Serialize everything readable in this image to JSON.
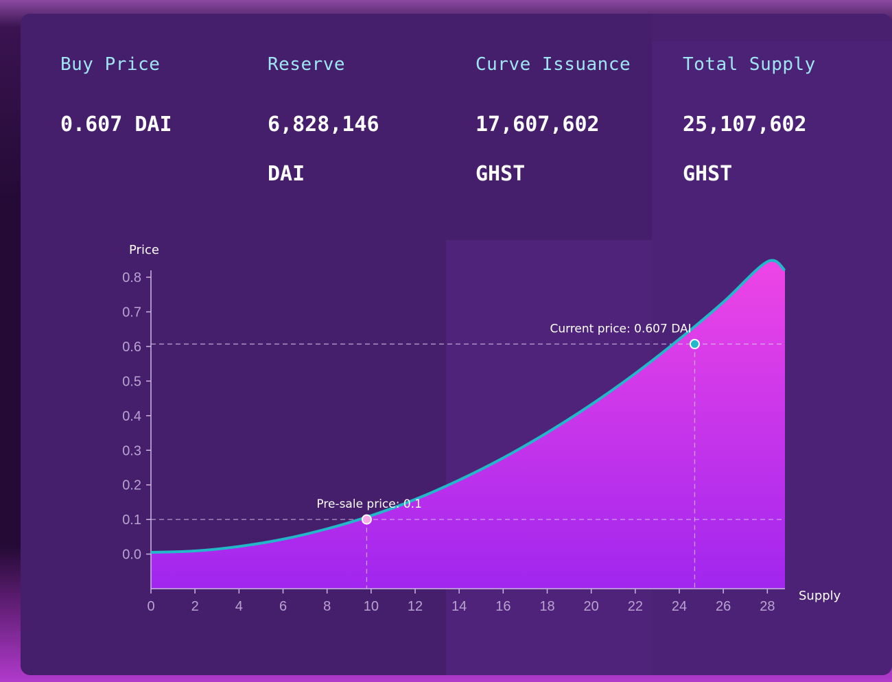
{
  "stats": [
    {
      "label": "Buy Price",
      "value": "0.607 DAI"
    },
    {
      "label": "Reserve",
      "value": "6,828,146 DAI"
    },
    {
      "label": "Curve Issuance",
      "value": "17,607,602 GHST"
    },
    {
      "label": "Total Supply",
      "value": "25,107,602 GHST"
    }
  ],
  "colors": {
    "label": "#9fe6f5",
    "curve": "#22b8c9",
    "fill_top": "#ee45e6",
    "fill_bottom": "#a126ee"
  },
  "chart_data": {
    "type": "area",
    "xlabel": "Supply",
    "ylabel": "Price",
    "xlim": [
      0,
      28.8
    ],
    "ylim": [
      -0.1,
      0.82
    ],
    "x_ticks": [
      0,
      2,
      4,
      6,
      8,
      10,
      12,
      14,
      16,
      18,
      20,
      22,
      24,
      26,
      28
    ],
    "y_ticks": [
      0.0,
      0.1,
      0.2,
      0.3,
      0.4,
      0.5,
      0.6,
      0.7,
      0.8
    ],
    "series": [
      {
        "x": [
          0,
          2,
          4,
          6,
          8,
          10,
          12,
          14,
          16,
          18,
          20,
          22,
          24,
          26,
          28,
          28.8
        ],
        "y": [
          0.005,
          0.009,
          0.022,
          0.043,
          0.073,
          0.111,
          0.158,
          0.214,
          0.278,
          0.351,
          0.432,
          0.522,
          0.621,
          0.728,
          0.845,
          0.82
        ]
      }
    ],
    "annotations": [
      {
        "text": "Pre-sale price: 0.1",
        "x": 9.8,
        "y": 0.1,
        "marker_color": "#f7a9e9"
      },
      {
        "text": "Current price: 0.607 DAI",
        "x": 24.7,
        "y": 0.607,
        "marker_color": "#22b8c9"
      }
    ],
    "grid": false
  }
}
